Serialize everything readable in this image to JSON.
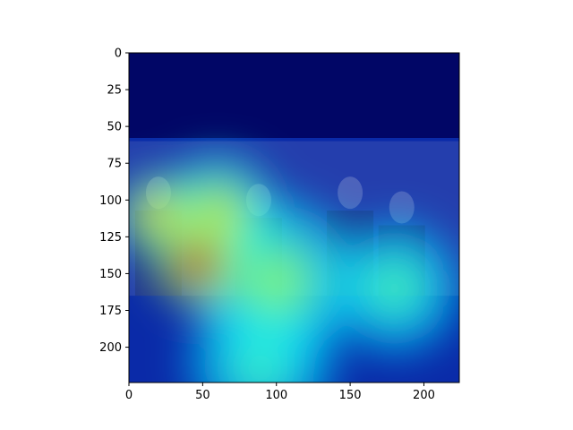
{
  "chart_data": {
    "type": "heatmap",
    "title": "",
    "xlabel": "",
    "ylabel": "",
    "xlim": [
      0,
      224
    ],
    "ylim": [
      224,
      0
    ],
    "xticks": [
      0,
      50,
      100,
      150,
      200
    ],
    "yticks": [
      0,
      25,
      50,
      75,
      100,
      125,
      150,
      175,
      200
    ],
    "xtick_labels": [
      "0",
      "50",
      "100",
      "150",
      "200"
    ],
    "ytick_labels": [
      "0",
      "25",
      "50",
      "75",
      "100",
      "125",
      "150",
      "175",
      "200"
    ],
    "colormap": "jet",
    "overlay": "heat map drawn over a photo of people in suits",
    "photo_rows": [
      60,
      165
    ],
    "grid": false,
    "hotspots": [
      {
        "x": 47,
        "y": 143,
        "intensity": 1.0,
        "radius": 30
      },
      {
        "x": 20,
        "y": 110,
        "intensity": 0.7,
        "radius": 28
      },
      {
        "x": 60,
        "y": 110,
        "intensity": 0.55,
        "radius": 40
      },
      {
        "x": 100,
        "y": 155,
        "intensity": 0.4,
        "radius": 55
      },
      {
        "x": 180,
        "y": 160,
        "intensity": 0.3,
        "radius": 45
      },
      {
        "x": 90,
        "y": 210,
        "intensity": 0.3,
        "radius": 50
      }
    ]
  }
}
